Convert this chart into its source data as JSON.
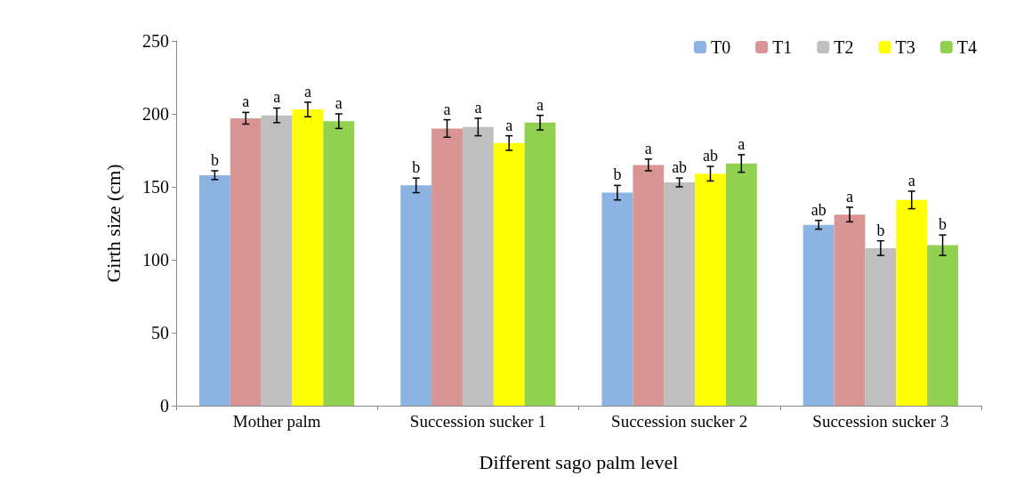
{
  "chart_data": {
    "type": "bar",
    "xlabel": "Different sago palm level",
    "ylabel": "Girth size (cm)",
    "categories": [
      "Mother palm",
      "Succession sucker 1",
      "Succession sucker 2",
      "Succession sucker 3"
    ],
    "series": [
      {
        "name": "T0",
        "color": "#8db3e2",
        "values": [
          158,
          151,
          146,
          124
        ],
        "errors": [
          3,
          5,
          5,
          3
        ],
        "value_labels": [
          "b",
          "b",
          "b",
          "ab"
        ]
      },
      {
        "name": "T1",
        "color": "#d99594",
        "values": [
          197,
          190,
          165,
          131
        ],
        "errors": [
          4,
          6,
          4,
          5
        ],
        "value_labels": [
          "a",
          "a",
          "a",
          "a"
        ]
      },
      {
        "name": "T2",
        "color": "#bfbfbf",
        "values": [
          199,
          191,
          153,
          108
        ],
        "errors": [
          5,
          6,
          3,
          5
        ],
        "value_labels": [
          "a",
          "a",
          "ab",
          "b"
        ]
      },
      {
        "name": "T3",
        "color": "#ffff00",
        "values": [
          203,
          180,
          159,
          141
        ],
        "errors": [
          5,
          5,
          5,
          6
        ],
        "value_labels": [
          "a",
          "a",
          "ab",
          "a"
        ]
      },
      {
        "name": "T4",
        "color": "#92d050",
        "values": [
          195,
          194,
          166,
          110
        ],
        "errors": [
          5,
          5,
          6,
          7
        ],
        "value_labels": [
          "a",
          "a",
          "a",
          "b"
        ]
      }
    ],
    "ylim": [
      0,
      250
    ],
    "yticks": [
      0,
      50,
      100,
      150,
      200,
      250
    ],
    "legend": "top right"
  }
}
